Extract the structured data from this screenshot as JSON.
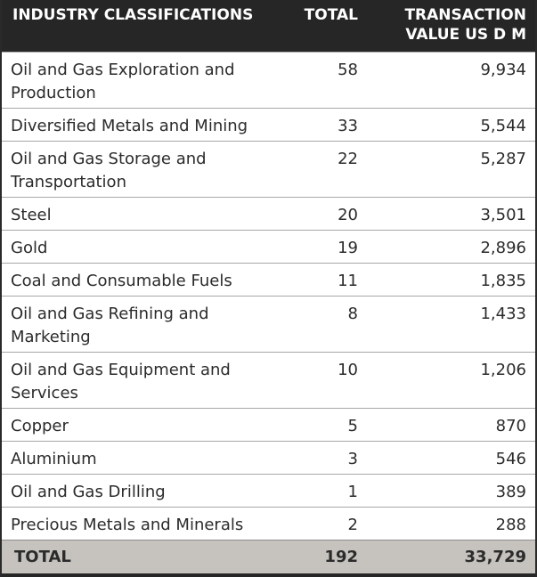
{
  "header": {
    "col1": "INDUSTRY CLASSIFICATIONS",
    "col2": "TOTAL",
    "col3": "TRANSACTION VALUE US D M"
  },
  "rows": [
    {
      "industry": "Oil and Gas Exploration and Production",
      "total": "58",
      "value": "9,934"
    },
    {
      "industry": "Diversified Metals and Mining",
      "total": "33",
      "value": "5,544"
    },
    {
      "industry": "Oil and Gas Storage and Transportation",
      "total": "22",
      "value": "5,287"
    },
    {
      "industry": "Steel",
      "total": "20",
      "value": "3,501"
    },
    {
      "industry": "Gold",
      "total": "19",
      "value": "2,896"
    },
    {
      "industry": "Coal and Consumable Fuels",
      "total": "11",
      "value": "1,835"
    },
    {
      "industry": "Oil and Gas Refining and Marketing",
      "total": "8",
      "value": "1,433"
    },
    {
      "industry": "Oil and Gas Equipment and Services",
      "total": "10",
      "value": "1,206"
    },
    {
      "industry": "Copper",
      "total": "5",
      "value": "870"
    },
    {
      "industry": "Aluminium",
      "total": "3",
      "value": "546"
    },
    {
      "industry": "Oil and Gas Drilling",
      "total": "1",
      "value": "389"
    },
    {
      "industry": "Precious Metals and Minerals",
      "total": "2",
      "value": "288"
    }
  ],
  "footer": {
    "label": "TOTAL",
    "total": "192",
    "value": "33,729"
  },
  "colors": {
    "header_bg": "#262626",
    "footer_bg": "#c6c3bf",
    "row_divider": "#a7a7a7"
  }
}
